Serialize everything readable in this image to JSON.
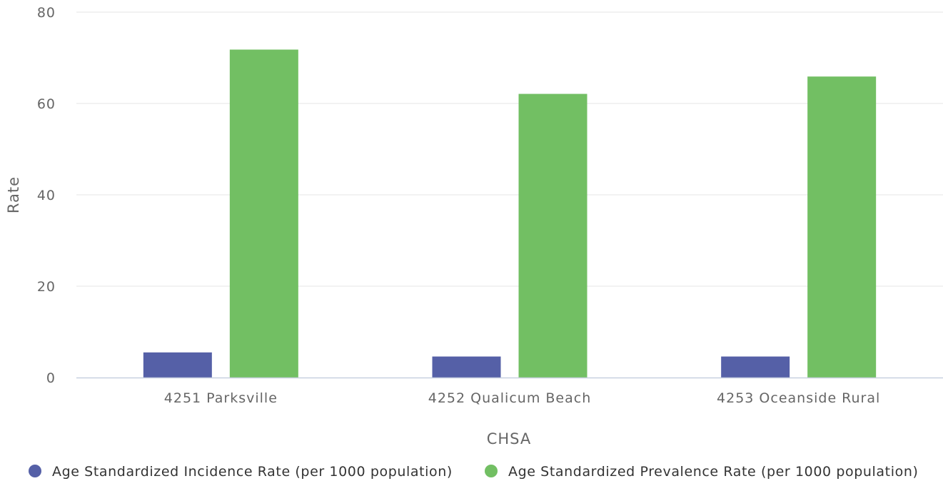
{
  "chart_data": {
    "type": "bar",
    "title": "",
    "xlabel": "CHSA",
    "ylabel": "Rate",
    "categories": [
      "4251 Parksville",
      "4252 Qualicum Beach",
      "4253 Oceanside Rural"
    ],
    "series": [
      {
        "name": "Age Standardized Incidence Rate (per 1000 population)",
        "color": "#5560a7",
        "values": [
          5.5,
          4.6,
          4.6
        ]
      },
      {
        "name": "Age Standardized Prevalence Rate (per 1000 population)",
        "color": "#72bf63",
        "values": [
          71.8,
          62.1,
          65.9
        ]
      }
    ],
    "ylim": [
      0,
      80
    ],
    "yticks": [
      0,
      20,
      40,
      60,
      80
    ],
    "grid": true,
    "legend_position": "bottom"
  }
}
